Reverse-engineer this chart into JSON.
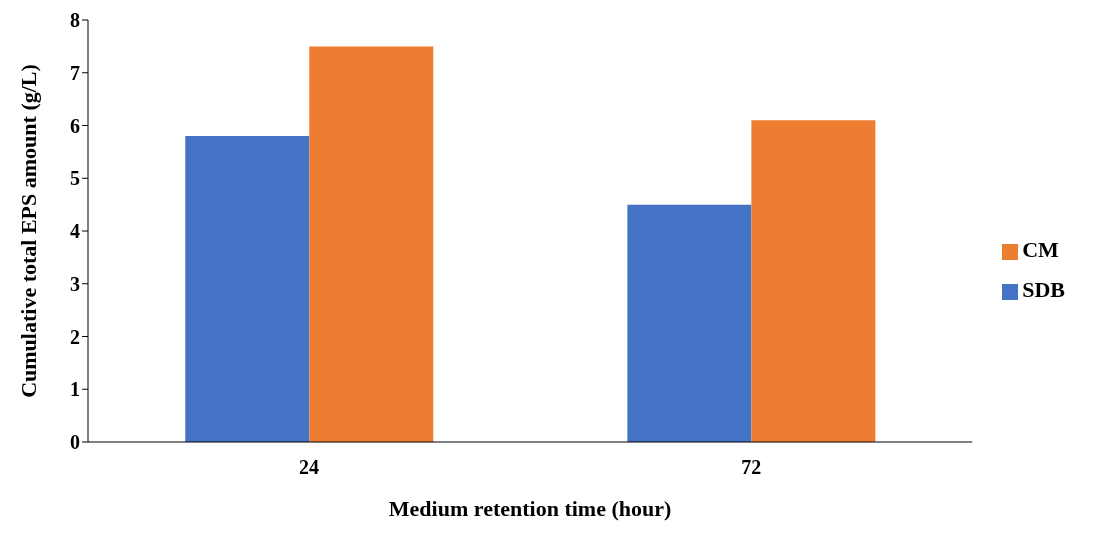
{
  "chart_data": {
    "type": "bar",
    "xlabel": "Medium retention time (hour)",
    "ylabel": "Cumulative total EPS amount (g/L)",
    "categories": [
      "24",
      "72"
    ],
    "series": [
      {
        "name": "SDB",
        "color": "#4472c4",
        "values": [
          5.8,
          4.5
        ]
      },
      {
        "name": "CM",
        "color": "#ed7d31",
        "values": [
          7.5,
          6.1
        ]
      }
    ],
    "ylim": [
      0,
      8
    ],
    "yticks": [
      0,
      1,
      2,
      3,
      4,
      5,
      6,
      7,
      8
    ],
    "grid": false,
    "legend": "right"
  }
}
